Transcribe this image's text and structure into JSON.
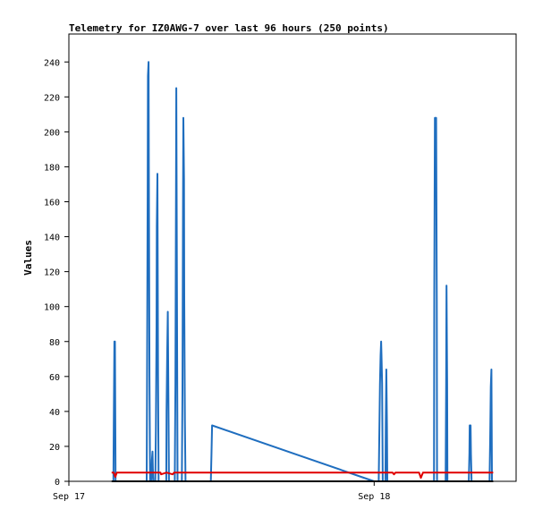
{
  "chart_data": {
    "type": "line",
    "title": "Telemetry for IZ0AWG-7 over last 96 hours (250 points)",
    "xlabel": "",
    "ylabel": "Values",
    "xlim": [
      0,
      1.465
    ],
    "ylim": [
      0,
      256
    ],
    "x_ticks": [
      {
        "value": 0,
        "label": "Sep 17"
      },
      {
        "value": 1,
        "label": "Sep 18"
      }
    ],
    "y_ticks": [
      0,
      20,
      40,
      60,
      80,
      100,
      120,
      140,
      160,
      180,
      200,
      220,
      240
    ],
    "grid": false,
    "colors": {
      "series_blue": "#1f6ebf",
      "series_red": "#e00000",
      "series_black": "#000000"
    },
    "series": [
      {
        "color": "#1f6ebf",
        "points": [
          [
            0.146,
            0
          ],
          [
            0.147,
            32
          ],
          [
            0.149,
            80
          ],
          [
            0.151,
            80
          ],
          [
            0.153,
            0
          ],
          [
            0.255,
            0
          ],
          [
            0.256,
            55
          ],
          [
            0.258,
            168
          ],
          [
            0.259,
            232
          ],
          [
            0.261,
            240
          ],
          [
            0.262,
            180
          ],
          [
            0.264,
            60
          ],
          [
            0.266,
            0
          ],
          [
            0.27,
            0
          ],
          [
            0.272,
            12
          ],
          [
            0.274,
            17
          ],
          [
            0.275,
            7
          ],
          [
            0.277,
            0
          ],
          [
            0.283,
            0
          ],
          [
            0.285,
            30
          ],
          [
            0.287,
            88
          ],
          [
            0.288,
            146
          ],
          [
            0.29,
            176
          ],
          [
            0.292,
            60
          ],
          [
            0.294,
            0
          ],
          [
            0.319,
            0
          ],
          [
            0.32,
            40
          ],
          [
            0.322,
            72
          ],
          [
            0.324,
            97
          ],
          [
            0.326,
            47
          ],
          [
            0.328,
            0
          ],
          [
            0.347,
            0
          ],
          [
            0.349,
            55
          ],
          [
            0.351,
            168
          ],
          [
            0.352,
            225
          ],
          [
            0.354,
            112
          ],
          [
            0.356,
            0
          ],
          [
            0.37,
            0
          ],
          [
            0.372,
            52
          ],
          [
            0.374,
            157
          ],
          [
            0.375,
            208
          ],
          [
            0.377,
            173
          ],
          [
            0.378,
            104
          ],
          [
            0.38,
            35
          ],
          [
            0.382,
            0
          ],
          [
            0.465,
            0
          ],
          [
            0.467,
            15
          ],
          [
            0.469,
            32
          ],
          [
            1.0,
            0
          ],
          [
            1.015,
            0
          ],
          [
            1.017,
            28
          ],
          [
            1.019,
            56
          ],
          [
            1.021,
            72
          ],
          [
            1.023,
            80
          ],
          [
            1.024,
            72
          ],
          [
            1.026,
            56
          ],
          [
            1.028,
            0
          ],
          [
            1.037,
            0
          ],
          [
            1.038,
            32
          ],
          [
            1.04,
            64
          ],
          [
            1.042,
            32
          ],
          [
            1.043,
            0
          ],
          [
            1.196,
            0
          ],
          [
            1.197,
            104
          ],
          [
            1.199,
            208
          ],
          [
            1.203,
            208
          ],
          [
            1.205,
            104
          ],
          [
            1.206,
            0
          ],
          [
            1.234,
            0
          ],
          [
            1.236,
            56
          ],
          [
            1.237,
            112
          ],
          [
            1.239,
            56
          ],
          [
            1.24,
            0
          ],
          [
            1.31,
            0
          ],
          [
            1.312,
            16
          ],
          [
            1.313,
            32
          ],
          [
            1.316,
            32
          ],
          [
            1.317,
            16
          ],
          [
            1.319,
            0
          ],
          [
            1.378,
            0
          ],
          [
            1.38,
            24
          ],
          [
            1.382,
            54
          ],
          [
            1.384,
            64
          ],
          [
            1.385,
            32
          ],
          [
            1.386,
            0
          ]
        ]
      },
      {
        "color": "#e00000",
        "points": [
          [
            0.14,
            5
          ],
          [
            0.147,
            5
          ],
          [
            0.152,
            2.5
          ],
          [
            0.157,
            5
          ],
          [
            0.3,
            5
          ],
          [
            0.302,
            4
          ],
          [
            0.32,
            5
          ],
          [
            0.34,
            4
          ],
          [
            0.345,
            5
          ],
          [
            1.0,
            5
          ],
          [
            1.06,
            5
          ],
          [
            1.065,
            4
          ],
          [
            1.07,
            5
          ],
          [
            1.147,
            5
          ],
          [
            1.153,
            2
          ],
          [
            1.16,
            5
          ],
          [
            1.39,
            5
          ]
        ]
      },
      {
        "color": "#000000",
        "points": [
          [
            0.14,
            0
          ],
          [
            1.39,
            0
          ]
        ]
      }
    ]
  }
}
